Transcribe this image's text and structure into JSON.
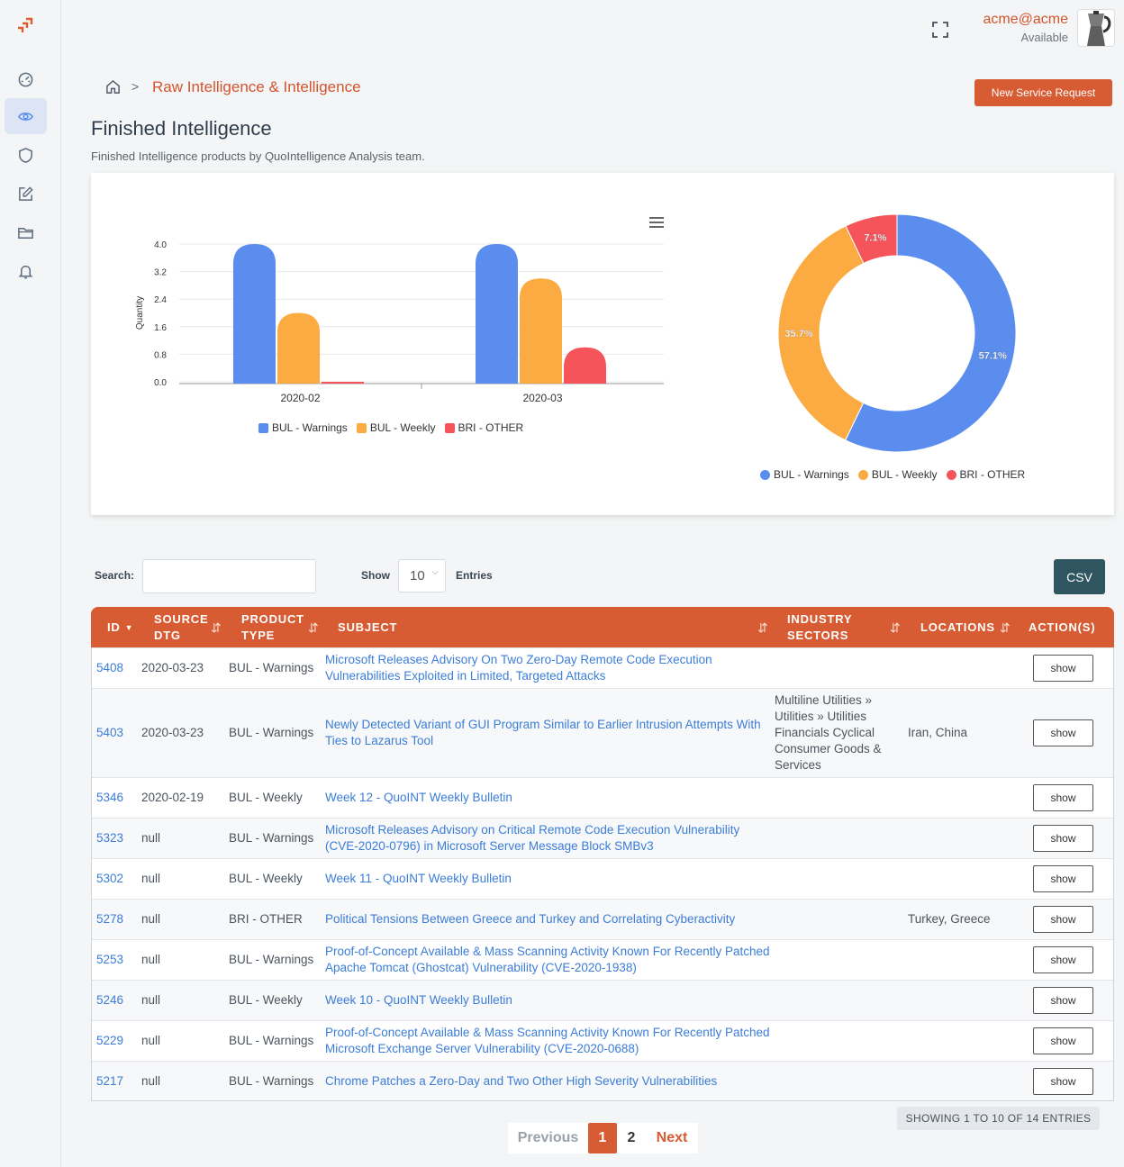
{
  "header": {
    "user_name": "acme@acme",
    "user_status": "Available"
  },
  "breadcrumb": {
    "current": "Raw Intelligence & Intelligence",
    "separator": ">"
  },
  "actions": {
    "new_request_label": "New Service Request"
  },
  "page": {
    "title": "Finished Intelligence",
    "subtitle": "Finished Intelligence products by QuoIntelligence Analysis team."
  },
  "colors": {
    "accent": "#d85c33",
    "blue": "#5b8def",
    "orange": "#fbab41",
    "red": "#f5545b",
    "csv": "#2e5560"
  },
  "chart_data": [
    {
      "type": "bar",
      "ylabel": "Quantity",
      "categories": [
        "2020-02",
        "2020-03"
      ],
      "ylim": [
        0,
        4.0
      ],
      "yticks": [
        "0.0",
        "0.8",
        "1.6",
        "2.4",
        "3.2",
        "4.0"
      ],
      "series": [
        {
          "name": "BUL - Warnings",
          "values": [
            4,
            4
          ],
          "color": "#5b8def"
        },
        {
          "name": "BUL - Weekly",
          "values": [
            2,
            3
          ],
          "color": "#fbab41"
        },
        {
          "name": "BRI - OTHER",
          "values": [
            0,
            1
          ],
          "color": "#f5545b"
        }
      ],
      "legend": "bottom"
    },
    {
      "type": "pie",
      "donut": true,
      "slices": [
        {
          "name": "BUL - Warnings",
          "value": 57.1,
          "label": "57.1%",
          "color": "#5b8def"
        },
        {
          "name": "BUL - Weekly",
          "value": 35.7,
          "label": "35.7%",
          "color": "#fbab41"
        },
        {
          "name": "BRI - OTHER",
          "value": 7.1,
          "label": "7.1%",
          "color": "#f5545b"
        }
      ],
      "legend": "bottom"
    }
  ],
  "controls": {
    "search_label": "Search:",
    "search_value": "",
    "show_label": "Show",
    "show_value": "10",
    "entries_label": "Entries",
    "csv_label": "CSV"
  },
  "table": {
    "headers": {
      "id": "ID",
      "source_dtg_1": "SOURCE",
      "source_dtg_2": "DTG",
      "product_type_1": "PRODUCT",
      "product_type_2": "TYPE",
      "subject": "SUBJECT",
      "industry_1": "INDUSTRY",
      "industry_2": "SECTORS",
      "locations": "LOCATIONS",
      "actions": "ACTION(S)"
    },
    "rows": [
      {
        "id": "5408",
        "dtg": "2020-03-23",
        "type": "BUL - Warnings",
        "subject": "Microsoft Releases Advisory On Two Zero-Day Remote Code Execution Vulnerabilities Exploited in Limited, Targeted Attacks",
        "sectors": [],
        "locations": "",
        "action": "show"
      },
      {
        "id": "5403",
        "dtg": "2020-03-23",
        "type": "BUL - Warnings",
        "subject": "Newly Detected Variant of GUI Program Similar to Earlier Intrusion Attempts With Ties to Lazarus Tool",
        "sectors": [
          "Multiline Utilities",
          "Utilities",
          "Utilities",
          "Financials",
          "Cyclical Consumer Goods & Services"
        ],
        "locations": "Iran, China",
        "action": "show"
      },
      {
        "id": "5346",
        "dtg": "2020-02-19",
        "type": "BUL - Weekly",
        "subject": "Week 12 - QuoINT Weekly Bulletin",
        "sectors": [],
        "locations": "",
        "action": "show"
      },
      {
        "id": "5323",
        "dtg": "null",
        "type": "BUL - Warnings",
        "subject": "Microsoft Releases Advisory on Critical Remote Code Execution Vulnerability (CVE-2020-0796) in Microsoft Server Message Block SMBv3",
        "sectors": [],
        "locations": "",
        "action": "show"
      },
      {
        "id": "5302",
        "dtg": "null",
        "type": "BUL - Weekly",
        "subject": "Week 11 - QuoINT Weekly Bulletin",
        "sectors": [],
        "locations": "",
        "action": "show"
      },
      {
        "id": "5278",
        "dtg": "null",
        "type": "BRI - OTHER",
        "subject": "Political Tensions Between Greece and Turkey and Correlating Cyberactivity",
        "sectors": [],
        "locations": "Turkey, Greece",
        "action": "show"
      },
      {
        "id": "5253",
        "dtg": "null",
        "type": "BUL - Warnings",
        "subject": "Proof-of-Concept Available & Mass Scanning Activity Known For Recently Patched Apache Tomcat (Ghostcat) Vulnerability (CVE-2020-1938)",
        "sectors": [],
        "locations": "",
        "action": "show"
      },
      {
        "id": "5246",
        "dtg": "null",
        "type": "BUL - Weekly",
        "subject": "Week 10 - QuoINT Weekly Bulletin",
        "sectors": [],
        "locations": "",
        "action": "show"
      },
      {
        "id": "5229",
        "dtg": "null",
        "type": "BUL - Warnings",
        "subject": "Proof-of-Concept Available & Mass Scanning Activity Known For Recently Patched Microsoft Exchange Server Vulnerability (CVE-2020-0688)",
        "sectors": [],
        "locations": "",
        "action": "show"
      },
      {
        "id": "5217",
        "dtg": "null",
        "type": "BUL - Warnings",
        "subject": "Chrome Patches a Zero-Day and Two Other High Severity Vulnerabilities",
        "sectors": [],
        "locations": "",
        "action": "show"
      }
    ]
  },
  "footer": {
    "showing": "SHOWING 1 TO 10 OF 14 ENTRIES",
    "prev": "Previous",
    "pages": [
      "1",
      "2"
    ],
    "active_page": "1",
    "next": "Next"
  },
  "icons": [
    "logo-icon",
    "dashboard-icon",
    "eye-icon",
    "shield-icon",
    "edit-icon",
    "folder-icon",
    "bell-icon",
    "moon-icon",
    "fullscreen-icon",
    "home-icon",
    "hamburger-menu-icon",
    "sort-icon"
  ]
}
